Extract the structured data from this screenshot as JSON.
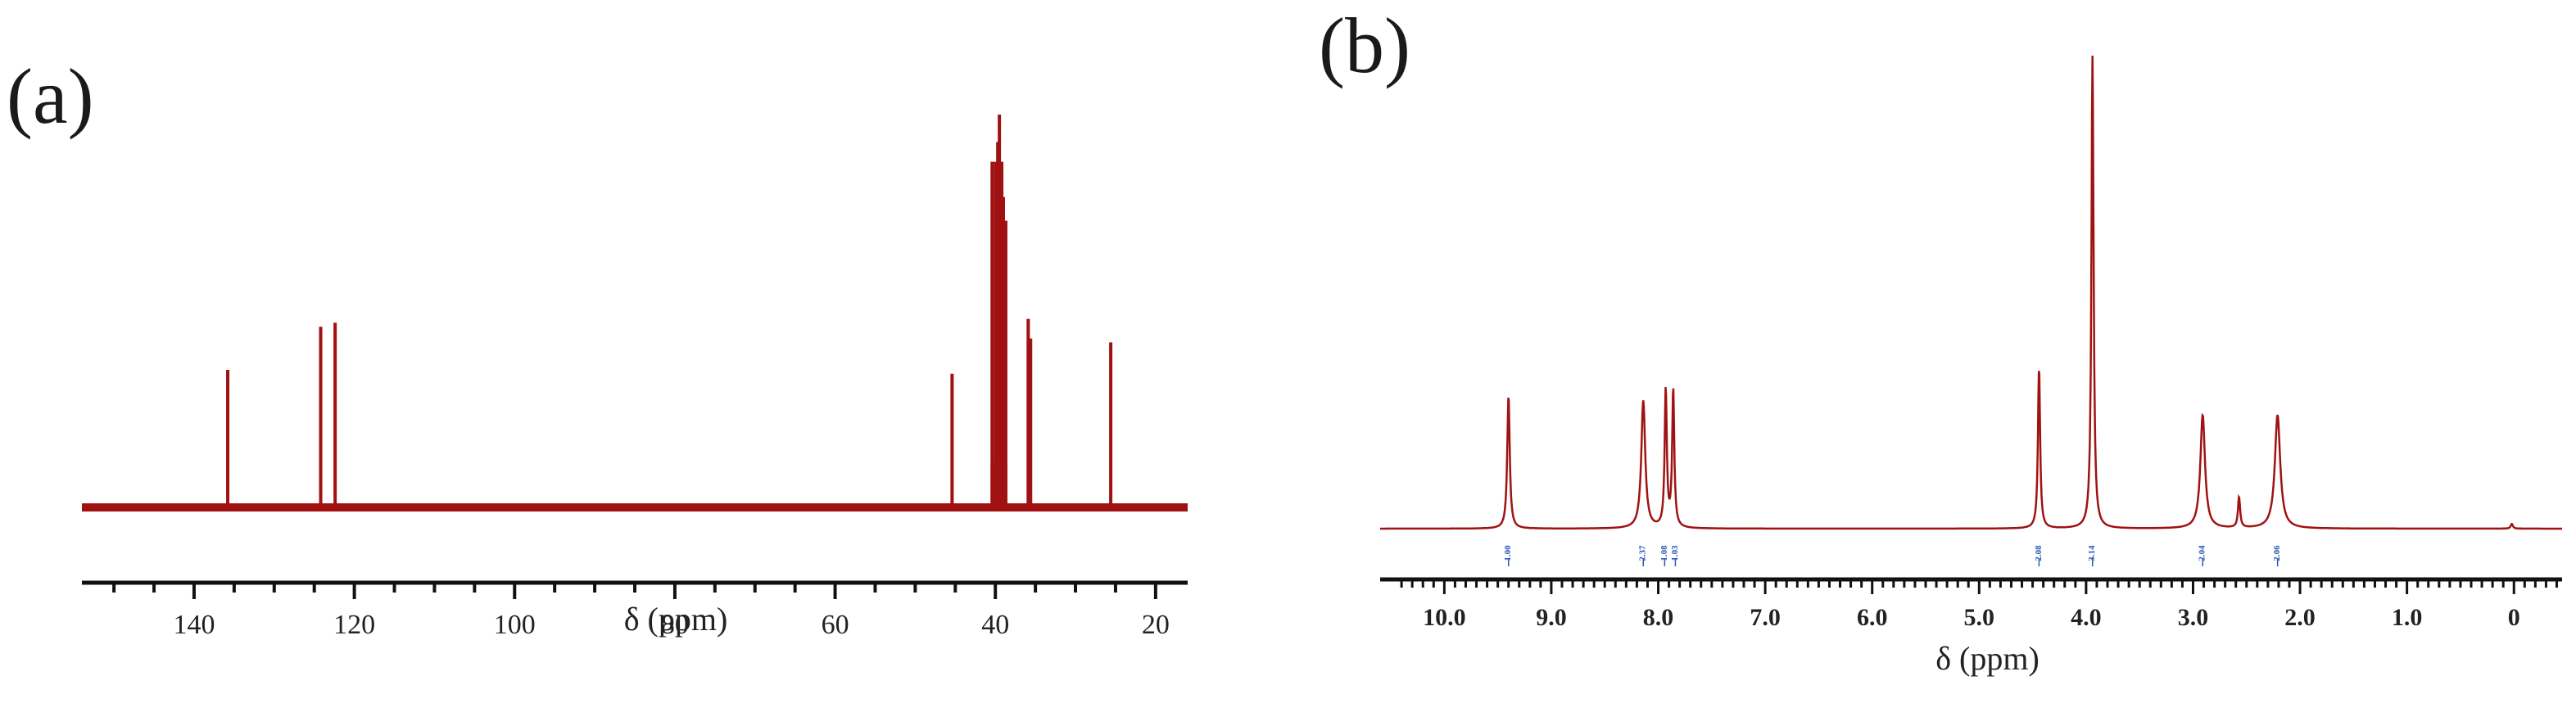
{
  "panels": {
    "a": {
      "letter": "(a)"
    },
    "b": {
      "letter": "(b)"
    }
  },
  "colors": {
    "spectrum": "#a01212",
    "axis": "#111111",
    "integration": "#2a55b8"
  },
  "chart_data": [
    {
      "type": "line",
      "title": "",
      "xlabel": "δ (ppm)",
      "ylabel": "",
      "xlim": [
        154,
        16
      ],
      "x_reversed": true,
      "grid": false,
      "xticks": [
        140,
        120,
        100,
        80,
        60,
        40,
        20
      ],
      "xtick_labels": [
        "140",
        "120",
        "100",
        "80",
        "60",
        "40",
        "20"
      ],
      "peaks": [
        {
          "ppm": 135.8,
          "height": 0.35
        },
        {
          "ppm": 124.2,
          "height": 0.46
        },
        {
          "ppm": 122.4,
          "height": 0.47
        },
        {
          "ppm": 45.4,
          "height": 0.34
        },
        {
          "ppm": 40.4,
          "height": 0.88
        },
        {
          "ppm": 40.0,
          "height": 0.88
        },
        {
          "ppm": 39.7,
          "height": 0.93
        },
        {
          "ppm": 39.5,
          "height": 1.0
        },
        {
          "ppm": 39.2,
          "height": 0.88
        },
        {
          "ppm": 39.0,
          "height": 0.79
        },
        {
          "ppm": 38.7,
          "height": 0.73
        },
        {
          "ppm": 35.9,
          "height": 0.48
        },
        {
          "ppm": 35.6,
          "height": 0.43
        },
        {
          "ppm": 25.6,
          "height": 0.42
        }
      ]
    },
    {
      "type": "line",
      "title": "",
      "xlabel": "δ (ppm)",
      "ylabel": "",
      "xlim": [
        10.6,
        -0.45
      ],
      "x_reversed": true,
      "grid": false,
      "xticks": [
        10.0,
        9.0,
        8.0,
        7.0,
        6.0,
        5.0,
        4.0,
        3.0,
        2.0,
        1.0,
        0
      ],
      "xtick_labels": [
        "10.0",
        "9.0",
        "8.0",
        "7.0",
        "6.0",
        "5.0",
        "4.0",
        "3.0",
        "2.0",
        "1.0",
        "0"
      ],
      "peaks": [
        {
          "ppm": 9.4,
          "height": 0.28,
          "width": 0.014
        },
        {
          "ppm": 8.14,
          "height": 0.27,
          "width": 0.022
        },
        {
          "ppm": 7.93,
          "height": 0.29,
          "width": 0.012
        },
        {
          "ppm": 7.86,
          "height": 0.29,
          "width": 0.012
        },
        {
          "ppm": 4.44,
          "height": 0.34,
          "width": 0.012
        },
        {
          "ppm": 3.94,
          "height": 1.0,
          "width": 0.012
        },
        {
          "ppm": 2.91,
          "height": 0.24,
          "width": 0.026
        },
        {
          "ppm": 2.57,
          "height": 0.065,
          "width": 0.012
        },
        {
          "ppm": 2.21,
          "height": 0.24,
          "width": 0.03
        },
        {
          "ppm": 0.02,
          "height": 0.01,
          "width": 0.012
        }
      ],
      "integrations": [
        {
          "ppm": 9.4,
          "label": "1.00"
        },
        {
          "ppm": 8.14,
          "label": "2.37"
        },
        {
          "ppm": 7.94,
          "label": "1.08"
        },
        {
          "ppm": 7.84,
          "label": "1.03"
        },
        {
          "ppm": 4.44,
          "label": "2.08"
        },
        {
          "ppm": 3.94,
          "label": "3.14"
        },
        {
          "ppm": 2.91,
          "label": "2.04"
        },
        {
          "ppm": 2.21,
          "label": "2.06"
        }
      ]
    }
  ]
}
